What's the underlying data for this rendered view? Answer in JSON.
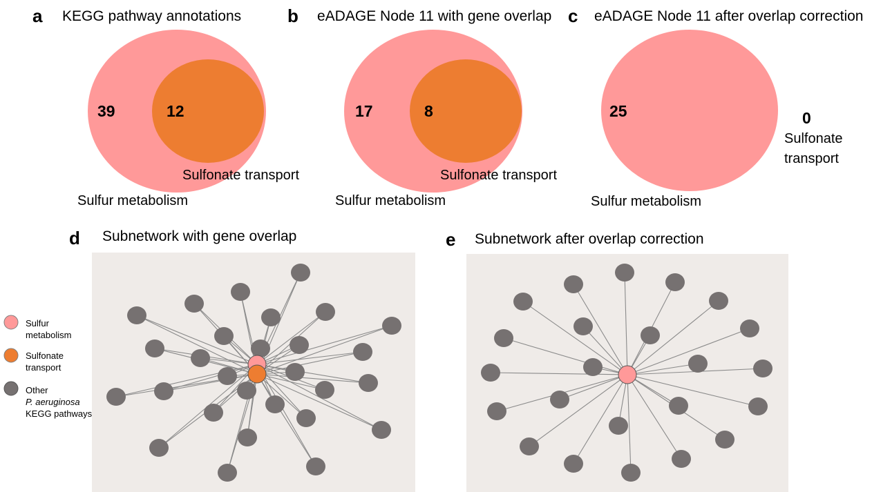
{
  "colors": {
    "sulfur_metabolism": "#ff9999",
    "sulfonate_transport": "#ed7d31",
    "other_pathways": "#767171",
    "network_background": "#efebe8",
    "edge": "#8a8a8a"
  },
  "panel_a": {
    "letter": "a",
    "title": "KEGG pathway annotations",
    "outer_count": "39",
    "inner_count": "12",
    "outer_label": "Sulfur metabolism",
    "inner_label": "Sulfonate transport"
  },
  "panel_b": {
    "letter": "b",
    "title": "eADAGE Node 11 with gene overlap",
    "outer_count": "17",
    "inner_count": "8",
    "outer_label": "Sulfur metabolism",
    "inner_label": "Sulfonate transport"
  },
  "panel_c": {
    "letter": "c",
    "title": "eADAGE Node 11 after overlap correction",
    "outer_count": "25",
    "side_count": "0",
    "outer_label": "Sulfur metabolism",
    "side_label_line1": "Sulfonate",
    "side_label_line2": "transport"
  },
  "panel_d": {
    "letter": "d",
    "title": "Subnetwork with gene overlap"
  },
  "panel_e": {
    "letter": "e",
    "title": "Subnetwork after overlap correction"
  },
  "legend": {
    "sulfur_line1": "Sulfur",
    "sulfur_line2": "metabolism",
    "sulfonate_line1": "Sulfonate",
    "sulfonate_line2": "transport",
    "other_line1": "Other",
    "other_line2": "P. aeruginosa",
    "other_line3": "KEGG pathways"
  }
}
